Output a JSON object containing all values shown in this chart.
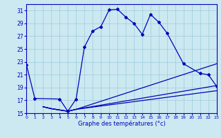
{
  "xlabel": "Graphe des températures (°c)",
  "background_color": "#cce8f0",
  "grid_color": "#99ccdd",
  "line_color": "#0000bb",
  "xlim": [
    0,
    23
  ],
  "ylim": [
    15,
    32
  ],
  "yticks": [
    15,
    17,
    19,
    21,
    23,
    25,
    27,
    29,
    31
  ],
  "xticks": [
    0,
    1,
    2,
    3,
    4,
    5,
    6,
    7,
    8,
    9,
    10,
    11,
    12,
    13,
    14,
    15,
    16,
    17,
    18,
    19,
    20,
    21,
    22,
    23
  ],
  "series": [
    {
      "x": [
        0,
        1,
        4,
        5,
        6,
        7,
        8,
        9,
        10,
        11,
        12,
        13,
        14,
        15,
        16,
        17,
        19,
        21,
        22,
        23
      ],
      "y": [
        22.5,
        17.3,
        17.2,
        15.3,
        17.2,
        25.3,
        27.8,
        28.5,
        31.1,
        31.2,
        30.0,
        29.0,
        27.3,
        30.4,
        29.2,
        27.5,
        22.7,
        21.2,
        21.0,
        19.2
      ],
      "has_markers": true
    },
    {
      "x": [
        2,
        3,
        4,
        5,
        6,
        23
      ],
      "y": [
        16.0,
        15.7,
        15.5,
        15.3,
        15.6,
        22.7
      ],
      "has_markers": false
    },
    {
      "x": [
        2,
        3,
        4,
        5,
        6,
        23
      ],
      "y": [
        16.0,
        15.7,
        15.5,
        15.3,
        15.6,
        19.3
      ],
      "has_markers": false
    },
    {
      "x": [
        2,
        3,
        4,
        5,
        6,
        23
      ],
      "y": [
        16.0,
        15.7,
        15.5,
        15.3,
        15.6,
        18.5
      ],
      "has_markers": false
    }
  ]
}
